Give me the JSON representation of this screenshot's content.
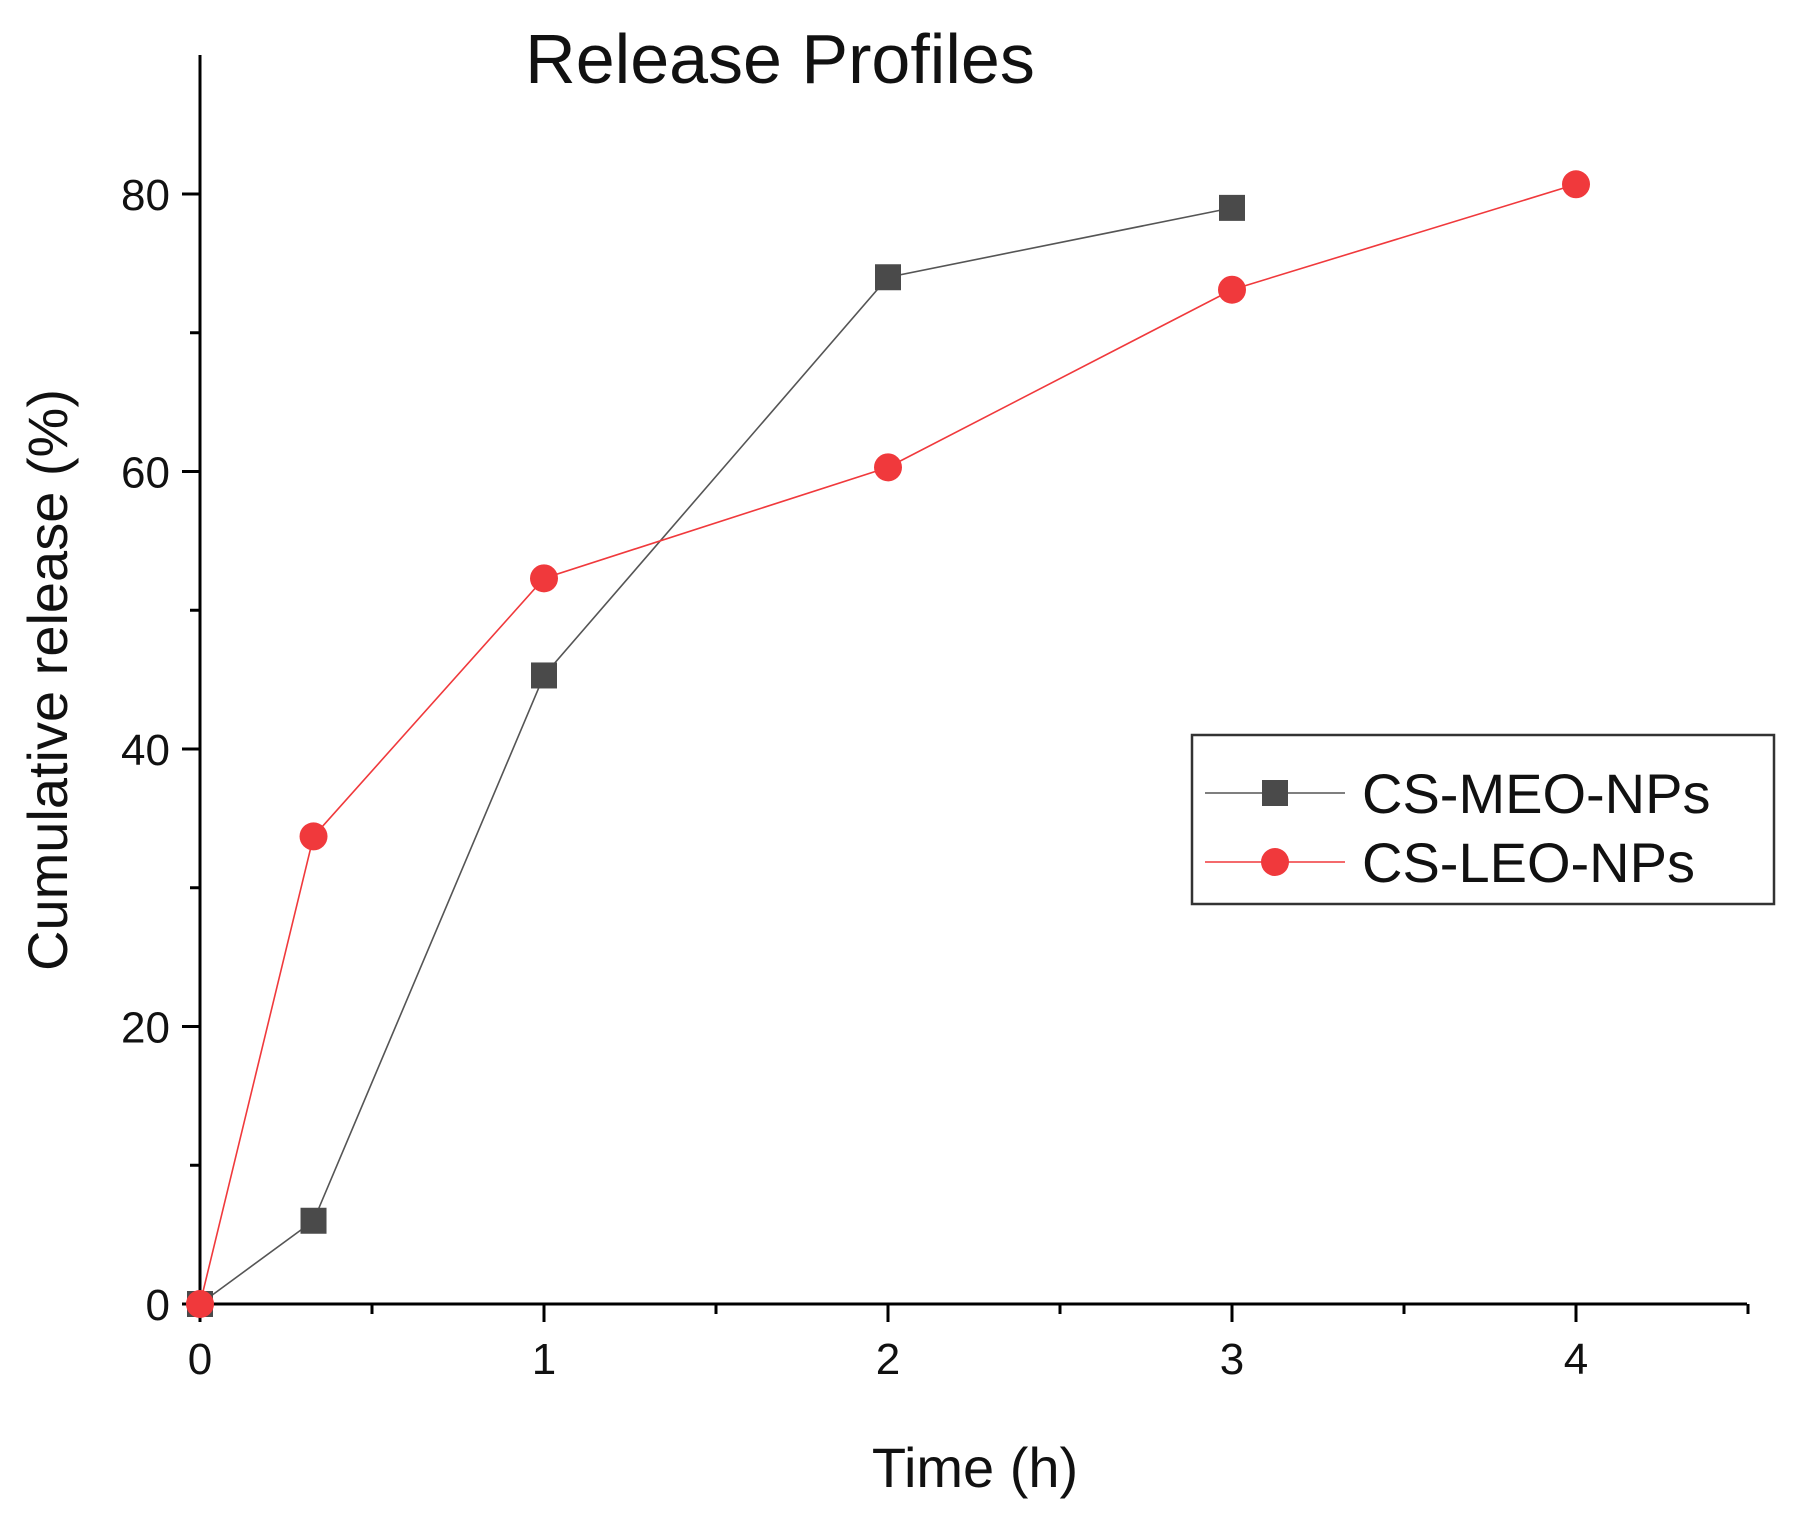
{
  "chart_data": {
    "type": "line",
    "title": "Release Profiles",
    "xlabel": "Time (h)",
    "ylabel": "Cumulative release (%)",
    "xlim": [
      0,
      4.5
    ],
    "ylim": [
      0,
      90
    ],
    "x_ticks": [
      0,
      1,
      2,
      3,
      4
    ],
    "x_tick_labels": [
      "0",
      "1",
      "2",
      "3",
      "4"
    ],
    "y_ticks": [
      0,
      20,
      40,
      60,
      80
    ],
    "y_tick_labels": [
      "0",
      "20",
      "40",
      "60",
      "80"
    ],
    "grid": false,
    "legend_position": "right",
    "series": [
      {
        "name": "CS-MEO-NPs",
        "marker": "square",
        "color": "#4a4a4a",
        "line_color": "#555555",
        "x": [
          0,
          0.33,
          1,
          2,
          3
        ],
        "y": [
          0,
          6,
          45.3,
          74,
          79
        ]
      },
      {
        "name": "CS-LEO-NPs",
        "marker": "circle",
        "color": "#f0393c",
        "line_color": "#f0393c",
        "x": [
          0,
          0.33,
          1,
          2,
          3,
          4
        ],
        "y": [
          0,
          33.7,
          52.3,
          60.3,
          73.1,
          80.7
        ]
      }
    ]
  }
}
